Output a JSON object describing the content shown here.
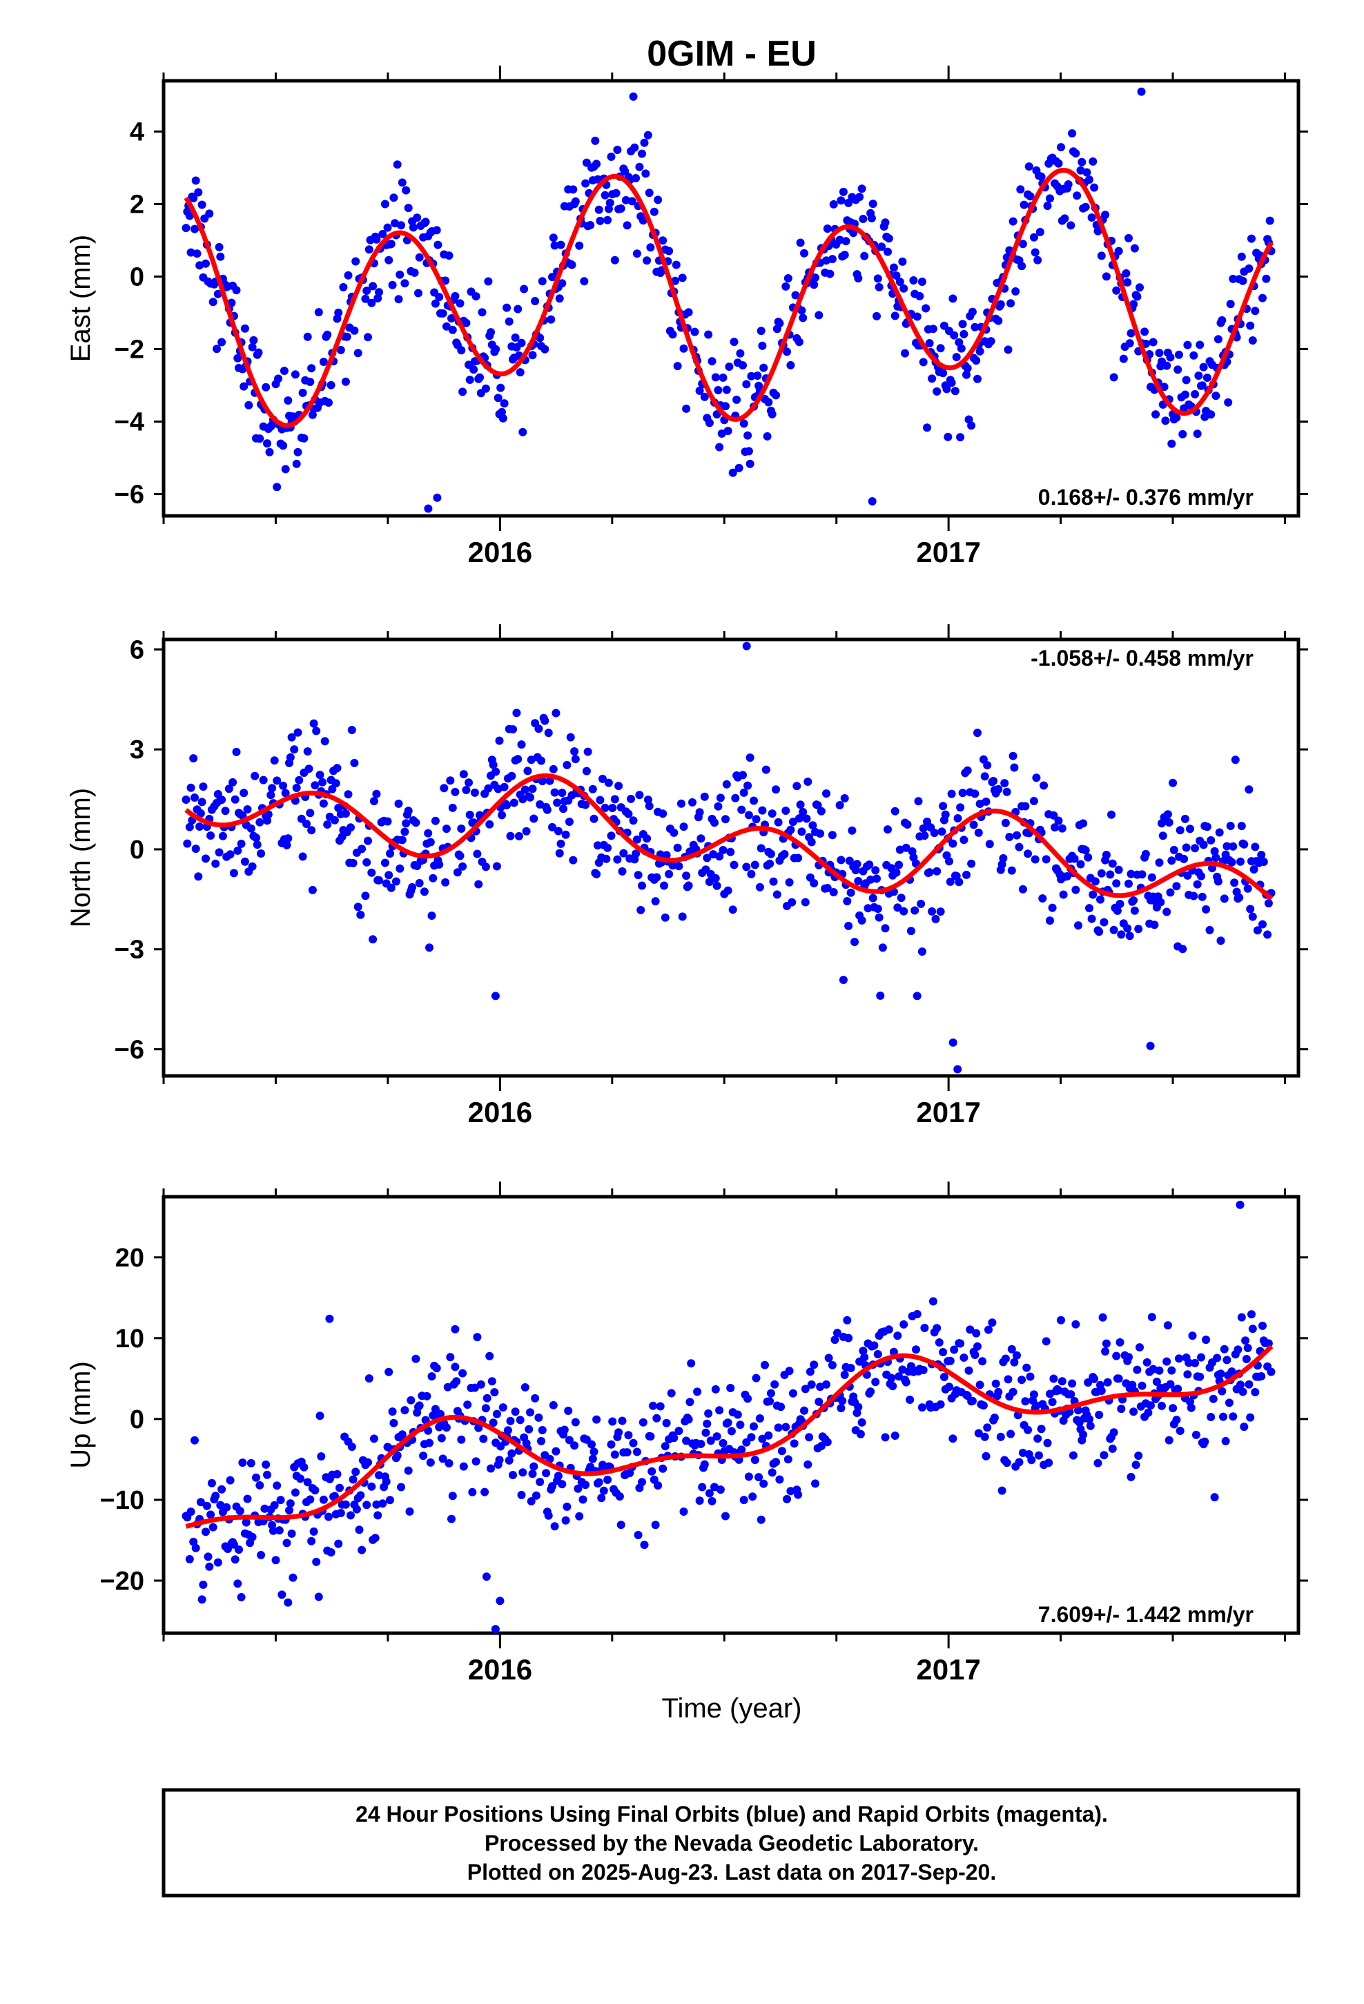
{
  "title": "0GIM - EU",
  "xlabel": "Time (year)",
  "footer": {
    "line1": "24 Hour Positions Using Final Orbits (blue) and Rapid Orbits (magenta).",
    "line2": "Processed by the Nevada Geodetic Laboratory.",
    "line3": "Plotted on 2025-Aug-23. Last data on 2017-Sep-20."
  },
  "colors": {
    "points": "#0000ff",
    "fit": "#ff0000",
    "axes": "#000000"
  },
  "chart_data": [
    {
      "type": "scatter",
      "ylabel": "East (mm)",
      "rate_label": "0.168+/- 0.376 mm/yr",
      "rate_position": "bottom-right",
      "xlim": [
        2015.25,
        2017.78
      ],
      "ylim": [
        -6.6,
        5.4
      ],
      "yticks": [
        4,
        2,
        0,
        -2,
        -4,
        -6
      ],
      "xticks": [
        2016,
        2017
      ],
      "start": 2015.3,
      "end": 2017.72,
      "fit": {
        "offset": -0.6,
        "trend": 0.168,
        "a1": 0.8,
        "b1": 0.6,
        "a2": -0.5,
        "b2": -2.6
      },
      "noise": 0.8,
      "outliers": [
        [
          2015.84,
          -6.4
        ],
        [
          2015.86,
          -6.1
        ],
        [
          2016.83,
          -6.2
        ],
        [
          2017.43,
          5.1
        ],
        [
          2016.33,
          3.9
        ]
      ]
    },
    {
      "type": "scatter",
      "ylabel": "North (mm)",
      "rate_label": "-1.058+/- 0.458 mm/yr",
      "rate_position": "top-right",
      "xlim": [
        2015.25,
        2017.78
      ],
      "ylim": [
        -6.8,
        6.3
      ],
      "yticks": [
        6,
        3,
        0,
        -3,
        -6
      ],
      "xticks": [
        2016,
        2017
      ],
      "start": 2015.3,
      "end": 2017.72,
      "fit": {
        "offset": 0.3,
        "trend": -1.058,
        "a1": 0.5,
        "b1": 0.3,
        "a2": 0.9,
        "b2": 0.3
      },
      "noise": 1.0,
      "outliers": [
        [
          2016.55,
          6.1
        ],
        [
          2017.02,
          -6.6
        ],
        [
          2017.01,
          -5.8
        ],
        [
          2016.93,
          -4.4
        ],
        [
          2015.99,
          -4.4
        ],
        [
          2017.45,
          -5.9
        ]
      ]
    },
    {
      "type": "scatter",
      "ylabel": "Up (mm)",
      "rate_label": "7.609+/- 1.442 mm/yr",
      "rate_position": "bottom-right",
      "xlim": [
        2015.25,
        2017.78
      ],
      "ylim": [
        -26.5,
        27.5
      ],
      "yticks": [
        20,
        10,
        0,
        -10,
        -20
      ],
      "xticks": [
        2016,
        2017
      ],
      "start": 2015.3,
      "end": 2017.72,
      "fit": {
        "offset": -1.5,
        "trend": 7.609,
        "a1": -2.8,
        "b1": 3.3,
        "a2": -2.0,
        "b2": 0.2
      },
      "noise": 4.0,
      "outliers": [
        [
          2015.99,
          -26.0
        ],
        [
          2016.0,
          -22.5
        ],
        [
          2015.97,
          -19.5
        ],
        [
          2017.65,
          26.5
        ],
        [
          2015.62,
          12.4
        ],
        [
          2015.9,
          11.1
        ]
      ]
    }
  ]
}
